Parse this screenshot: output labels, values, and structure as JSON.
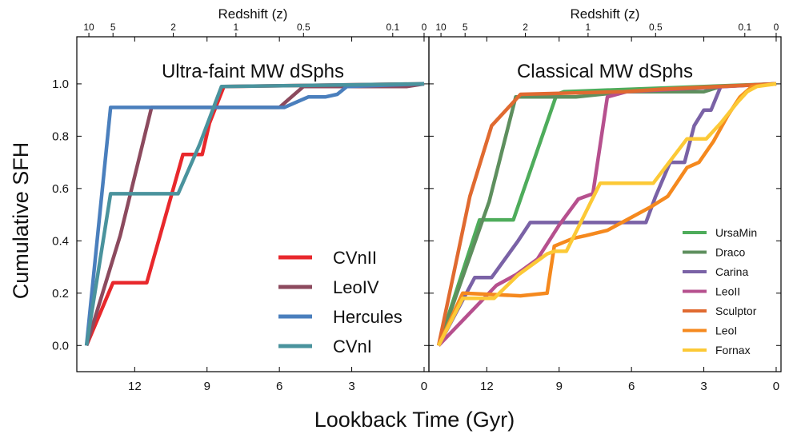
{
  "figure": {
    "xlabel": "Lookback Time (Gyr)",
    "ylabel": "Cumulative SFH",
    "top_axis_label": "Redshift (z)"
  },
  "chart_data": [
    {
      "type": "line",
      "title": "Ultra-faint MW dSphs",
      "xlabel": "Lookback Time (Gyr)",
      "ylabel": "Cumulative SFH",
      "xlim": [
        14.4,
        -0.2
      ],
      "ylim": [
        -0.1,
        1.18
      ],
      "xticks": [
        12,
        9,
        6,
        3,
        0
      ],
      "yticks": [
        0.0,
        0.2,
        0.4,
        0.6,
        0.8,
        1.0
      ],
      "top_axis": {
        "label": "Redshift (z)",
        "ticks": [
          {
            "label": "10",
            "x": 13.9
          },
          {
            "label": "5",
            "x": 12.9
          },
          {
            "label": "2",
            "x": 10.4
          },
          {
            "label": "1",
            "x": 7.8
          },
          {
            "label": "0.5",
            "x": 5.0
          },
          {
            "label": "0.1",
            "x": 1.3
          },
          {
            "label": "0",
            "x": 0.0
          }
        ]
      },
      "legend": {
        "position": "bottom-right",
        "style": "large"
      },
      "series": [
        {
          "name": "CVnII",
          "color": "#e8282c",
          "x": [
            14.0,
            12.9,
            11.5,
            10.0,
            9.6,
            9.2,
            8.9,
            8.3,
            0.0
          ],
          "y": [
            0.0,
            0.24,
            0.24,
            0.73,
            0.73,
            0.73,
            0.85,
            0.99,
            1.0
          ]
        },
        {
          "name": "LeoIV",
          "color": "#8c4a5e",
          "x": [
            14.0,
            12.6,
            11.3,
            6.0,
            5.0,
            0.7,
            0.0
          ],
          "y": [
            0.0,
            0.42,
            0.91,
            0.91,
            0.99,
            0.99,
            1.0
          ]
        },
        {
          "name": "Hercules",
          "color": "#4a7fbd",
          "x": [
            14.0,
            13.0,
            5.8,
            4.8,
            4.1,
            3.6,
            3.2,
            0.0
          ],
          "y": [
            0.0,
            0.91,
            0.91,
            0.95,
            0.95,
            0.96,
            0.99,
            1.0
          ]
        },
        {
          "name": "CVnI",
          "color": "#4a939d",
          "x": [
            14.0,
            13.0,
            10.2,
            9.3,
            8.4,
            0.0
          ],
          "y": [
            0.0,
            0.58,
            0.58,
            0.77,
            0.99,
            1.0
          ]
        }
      ]
    },
    {
      "type": "line",
      "title": "Classical MW dSphs",
      "xlabel": "Lookback Time (Gyr)",
      "ylabel": "Cumulative SFH",
      "xlim": [
        14.4,
        -0.2
      ],
      "ylim": [
        -0.1,
        1.18
      ],
      "xticks": [
        12,
        9,
        6,
        3,
        0
      ],
      "yticks": [
        0.0,
        0.2,
        0.4,
        0.6,
        0.8,
        1.0
      ],
      "top_axis": {
        "label": "Redshift (z)",
        "ticks": [
          {
            "label": "10",
            "x": 13.9
          },
          {
            "label": "5",
            "x": 12.9
          },
          {
            "label": "2",
            "x": 10.4
          },
          {
            "label": "1",
            "x": 7.8
          },
          {
            "label": "0.5",
            "x": 5.0
          },
          {
            "label": "0.1",
            "x": 1.3
          },
          {
            "label": "0",
            "x": 0.0
          }
        ]
      },
      "legend": {
        "position": "bottom-right",
        "style": "small"
      },
      "series": [
        {
          "name": "UrsaMin",
          "color": "#4eac5b",
          "x": [
            14.0,
            12.3,
            11.7,
            10.9,
            9.1,
            8.8,
            0.0
          ],
          "y": [
            0.0,
            0.48,
            0.48,
            0.48,
            0.96,
            0.97,
            1.0
          ]
        },
        {
          "name": "Draco",
          "color": "#5e8f5e",
          "x": [
            14.0,
            11.9,
            10.8,
            8.3,
            6.2,
            5.3,
            3.0,
            2.3,
            0.0
          ],
          "y": [
            0.0,
            0.55,
            0.95,
            0.95,
            0.97,
            0.97,
            0.97,
            0.99,
            1.0
          ]
        },
        {
          "name": "Carina",
          "color": "#7a62a6",
          "x": [
            14.0,
            12.5,
            11.8,
            10.7,
            10.2,
            5.4,
            5.0,
            4.4,
            3.8,
            3.4,
            3.0,
            2.7,
            2.3,
            0.0
          ],
          "y": [
            0.0,
            0.26,
            0.26,
            0.4,
            0.47,
            0.47,
            0.57,
            0.7,
            0.7,
            0.84,
            0.9,
            0.9,
            0.99,
            1.0
          ]
        },
        {
          "name": "LeoII",
          "color": "#b6508e",
          "x": [
            14.0,
            11.6,
            10.8,
            9.9,
            9.0,
            8.2,
            7.6,
            7.0,
            6.2,
            0.0
          ],
          "y": [
            0.0,
            0.23,
            0.27,
            0.33,
            0.46,
            0.56,
            0.58,
            0.95,
            0.97,
            1.0
          ]
        },
        {
          "name": "Sculptor",
          "color": "#e06a30",
          "x": [
            14.0,
            12.7,
            11.8,
            11.0,
            10.6,
            6.3,
            4.7,
            0.0
          ],
          "y": [
            0.0,
            0.57,
            0.84,
            0.92,
            0.96,
            0.97,
            0.98,
            1.0
          ]
        },
        {
          "name": "LeoI",
          "color": "#f5891e",
          "x": [
            14.0,
            13.0,
            10.6,
            9.5,
            9.2,
            8.4,
            7.9,
            7.0,
            6.0,
            5.2,
            4.5,
            3.7,
            3.2,
            2.6,
            2.0,
            1.5,
            1.0,
            0.0
          ],
          "y": [
            0.0,
            0.2,
            0.19,
            0.2,
            0.38,
            0.41,
            0.42,
            0.44,
            0.49,
            0.53,
            0.57,
            0.68,
            0.7,
            0.78,
            0.88,
            0.95,
            0.99,
            1.0
          ]
        },
        {
          "name": "Fornax",
          "color": "#fcc936",
          "x": [
            14.0,
            13.0,
            11.7,
            10.7,
            9.5,
            9.2,
            8.7,
            7.3,
            5.8,
            5.1,
            3.7,
            2.9,
            2.3,
            1.6,
            1.2,
            0.8,
            0.0
          ],
          "y": [
            0.0,
            0.18,
            0.18,
            0.27,
            0.35,
            0.36,
            0.36,
            0.62,
            0.62,
            0.62,
            0.79,
            0.79,
            0.85,
            0.93,
            0.97,
            0.99,
            1.0
          ]
        }
      ]
    }
  ]
}
